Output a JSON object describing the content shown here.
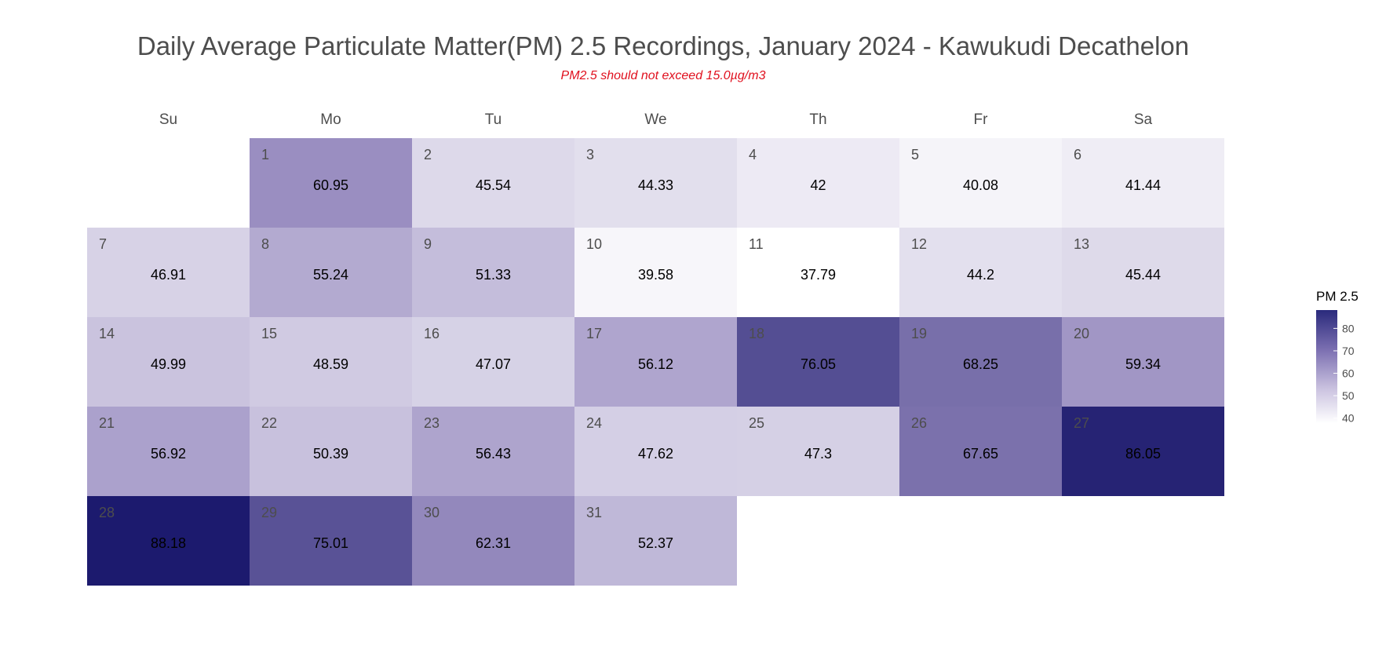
{
  "chart_data": {
    "type": "heatmap",
    "title": "Daily Average Particulate Matter(PM) 2.5 Recordings, January 2024 - Kawukudi Decathelon",
    "subtitle": "PM2.5 should not exceed 15.0µg/m3",
    "weekdays": [
      "Su",
      "Mo",
      "Tu",
      "We",
      "Th",
      "Fr",
      "Sa"
    ],
    "first_weekday_index": 1,
    "days": [
      {
        "day": "1",
        "value": 60.95
      },
      {
        "day": "2",
        "value": 45.54
      },
      {
        "day": "3",
        "value": 44.33
      },
      {
        "day": "4",
        "value": 42
      },
      {
        "day": "5",
        "value": 40.08
      },
      {
        "day": "6",
        "value": 41.44
      },
      {
        "day": "7",
        "value": 46.91
      },
      {
        "day": "8",
        "value": 55.24
      },
      {
        "day": "9",
        "value": 51.33
      },
      {
        "day": "10",
        "value": 39.58
      },
      {
        "day": "11",
        "value": 37.79
      },
      {
        "day": "12",
        "value": 44.2
      },
      {
        "day": "13",
        "value": 45.44
      },
      {
        "day": "14",
        "value": 49.99
      },
      {
        "day": "15",
        "value": 48.59
      },
      {
        "day": "16",
        "value": 47.07
      },
      {
        "day": "17",
        "value": 56.12
      },
      {
        "day": "18",
        "value": 76.05
      },
      {
        "day": "19",
        "value": 68.25
      },
      {
        "day": "20",
        "value": 59.34
      },
      {
        "day": "21",
        "value": 56.92
      },
      {
        "day": "22",
        "value": 50.39
      },
      {
        "day": "23",
        "value": 56.43
      },
      {
        "day": "24",
        "value": 47.62
      },
      {
        "day": "25",
        "value": 47.3
      },
      {
        "day": "26",
        "value": 67.65
      },
      {
        "day": "27",
        "value": 86.05
      },
      {
        "day": "28",
        "value": 88.18
      },
      {
        "day": "29",
        "value": 75.01
      },
      {
        "day": "30",
        "value": 62.31
      },
      {
        "day": "31",
        "value": 52.37
      }
    ],
    "legend": {
      "title": "PM 2.5",
      "ticks": [
        "80",
        "70",
        "60",
        "50",
        "40"
      ],
      "range": [
        37.79,
        88.18
      ],
      "placement": "right"
    },
    "colors": {
      "low": "#ffffff",
      "mid": "#9c90c2",
      "high": "#1c1a6e"
    }
  }
}
